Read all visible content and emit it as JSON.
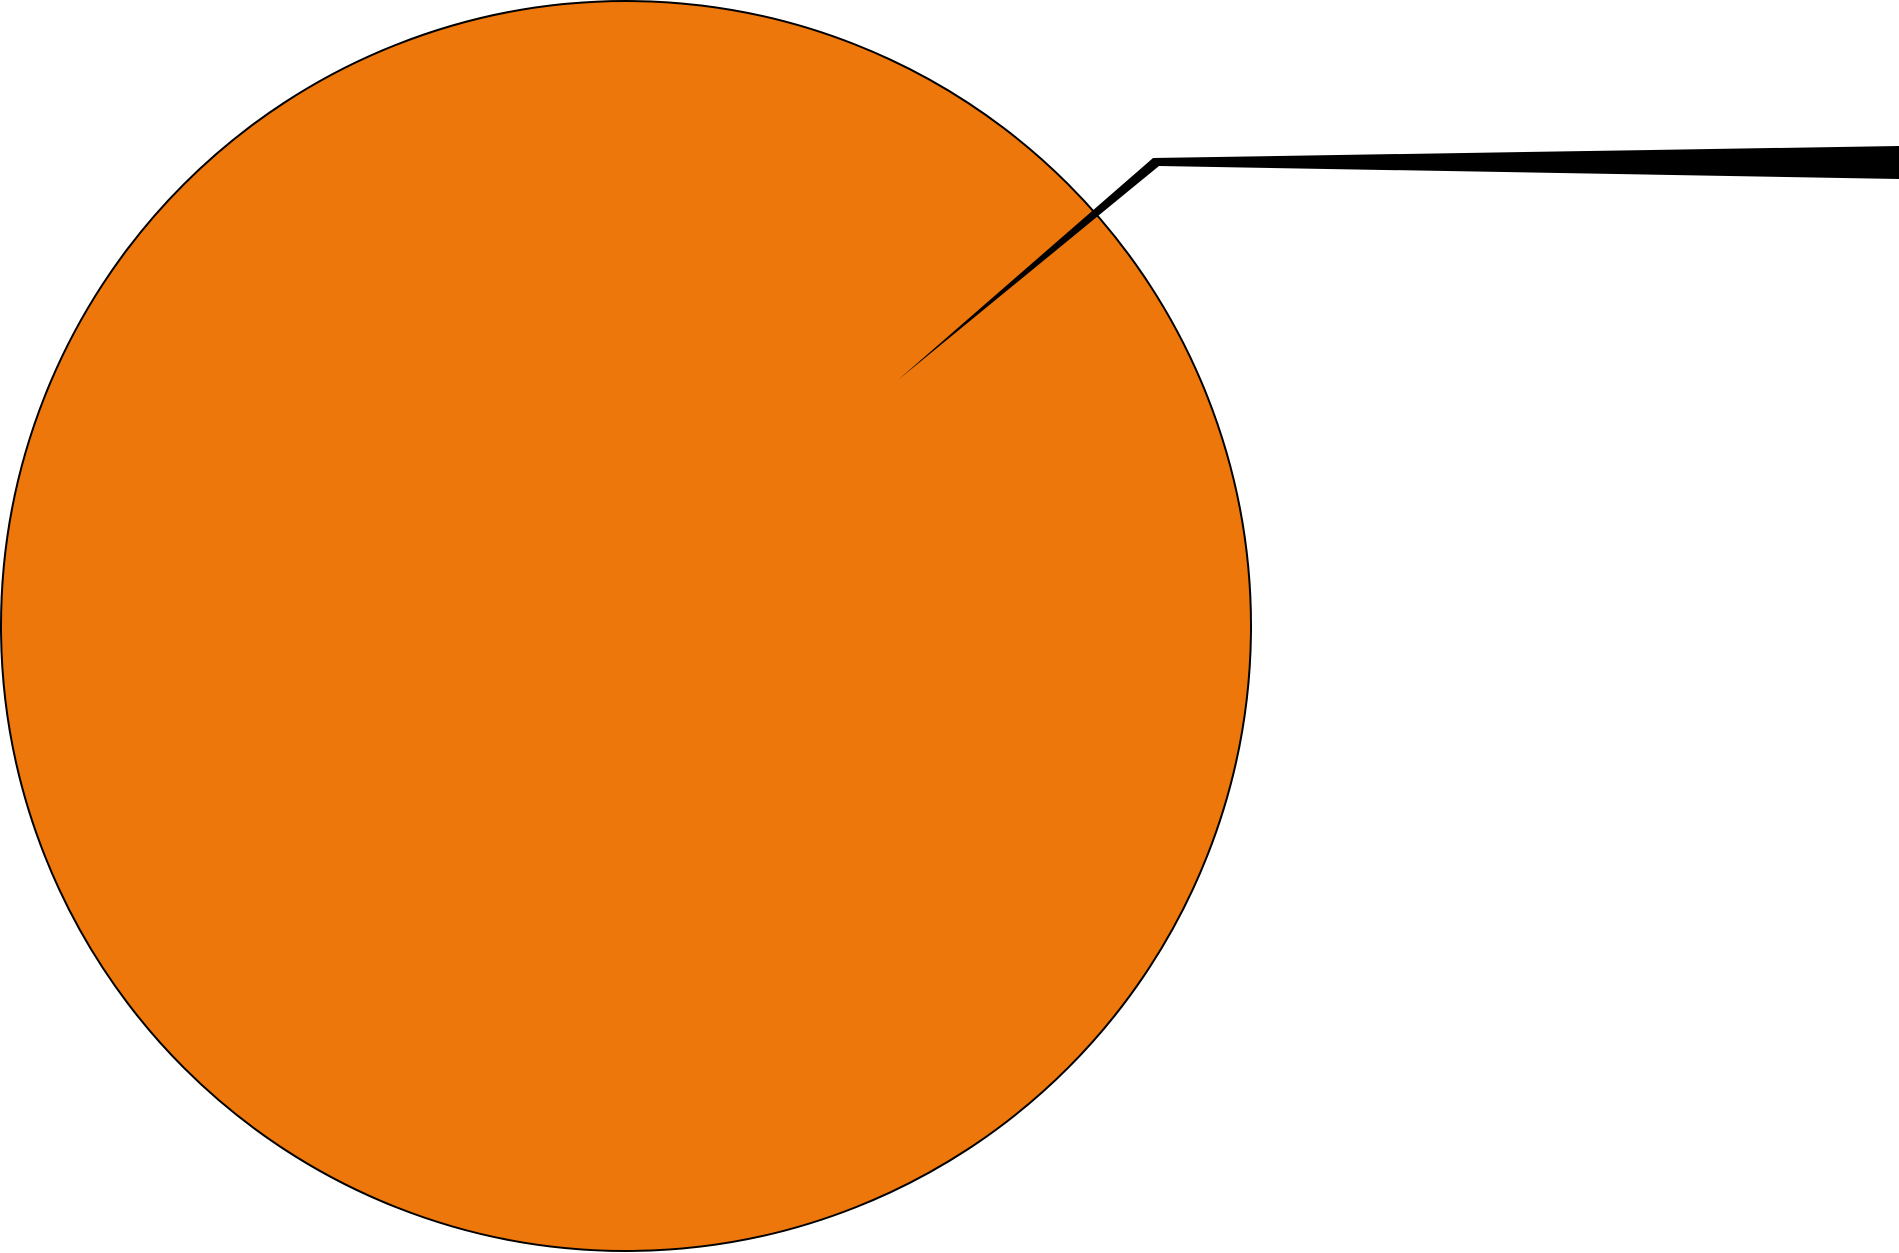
{
  "figure": {
    "circle_fill": "#EE770B",
    "outline_color": "#000000",
    "pointer_color": "#000000",
    "background": "#FFFFFF"
  }
}
